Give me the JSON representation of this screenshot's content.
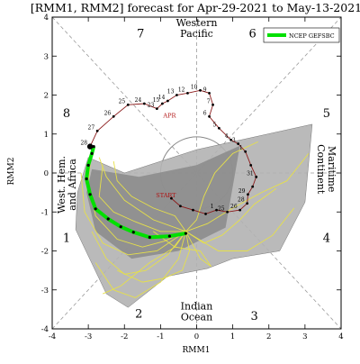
{
  "chart_data": {
    "type": "line",
    "title": "[RMM1, RMM2] forecast for Apr-29-2021 to May-13-2021",
    "xlabel": "RMM1",
    "ylabel": "RMM2",
    "xlim": [
      -4,
      4
    ],
    "ylim": [
      -4,
      4
    ],
    "xticks": [
      "-4",
      "-3",
      "-2",
      "-1",
      "0",
      "1",
      "2",
      "3",
      "4"
    ],
    "yticks": [
      "-4",
      "-3",
      "-2",
      "-1",
      "0",
      "1",
      "2",
      "3",
      "4"
    ],
    "legend": {
      "placement": "top-right",
      "label": "NCEP GEFSBC",
      "color": "#00e000"
    },
    "phase_numbers": [
      {
        "label": "1",
        "x": -3.6,
        "y": -1.65
      },
      {
        "label": "2",
        "x": -1.6,
        "y": -3.6
      },
      {
        "label": "3",
        "x": 1.6,
        "y": -3.65
      },
      {
        "label": "4",
        "x": 3.6,
        "y": -1.65
      },
      {
        "label": "5",
        "x": 3.6,
        "y": 1.55
      },
      {
        "label": "6",
        "x": 1.55,
        "y": 3.6
      },
      {
        "label": "7",
        "x": -1.55,
        "y": 3.6
      },
      {
        "label": "8",
        "x": -3.6,
        "y": 1.55
      }
    ],
    "region_labels": [
      {
        "lines": [
          "Western",
          "Pacific"
        ],
        "x": 0,
        "y": 3.72,
        "rotate": 0
      },
      {
        "lines": [
          "Indian",
          "Ocean"
        ],
        "x": 0,
        "y": -3.55,
        "rotate": 0
      },
      {
        "lines": [
          "West. Hem.",
          "and Africa"
        ],
        "x": -3.6,
        "y": -0.3,
        "rotate": -90
      },
      {
        "lines": [
          "Maritime",
          "Continent"
        ],
        "x": 3.6,
        "y": 0.1,
        "rotate": 90
      }
    ],
    "observed": {
      "color": "#8b1a1a",
      "points": [
        {
          "x": -2.95,
          "y": 0.68,
          "label": "28"
        },
        {
          "x": -2.75,
          "y": 1.08,
          "label": "27"
        },
        {
          "x": -2.3,
          "y": 1.45,
          "label": "26"
        },
        {
          "x": -1.9,
          "y": 1.75,
          "label": "25"
        },
        {
          "x": -1.45,
          "y": 1.78,
          "label": "24"
        },
        {
          "x": -1.1,
          "y": 1.65,
          "label": "23"
        },
        {
          "x": -0.95,
          "y": 1.78,
          "label": "15"
        },
        {
          "x": -0.8,
          "y": 1.85,
          "label": "14"
        },
        {
          "x": -0.55,
          "y": 2.0,
          "label": "13"
        },
        {
          "x": -0.25,
          "y": 2.05,
          "label": "12"
        },
        {
          "x": 0.1,
          "y": 2.12,
          "label": "10"
        },
        {
          "x": 0.35,
          "y": 2.05,
          "label": "9"
        },
        {
          "x": 0.45,
          "y": 1.75,
          "label": "7"
        },
        {
          "x": 0.35,
          "y": 1.45,
          "label": "6"
        },
        {
          "x": 0.62,
          "y": 1.15,
          "label": "5"
        },
        {
          "x": 0.95,
          "y": 0.85,
          "label": "4"
        },
        {
          "x": 1.15,
          "y": 0.75,
          "label": "3"
        },
        {
          "x": 1.35,
          "y": 0.55,
          "label": "1"
        },
        {
          "x": 1.5,
          "y": 0.2,
          "label": ""
        },
        {
          "x": 1.65,
          "y": -0.1,
          "label": "31"
        },
        {
          "x": 1.55,
          "y": -0.35,
          "label": ""
        },
        {
          "x": 1.42,
          "y": -0.55,
          "label": "29"
        },
        {
          "x": 1.4,
          "y": -0.78,
          "label": "28"
        },
        {
          "x": 1.2,
          "y": -0.95,
          "label": "26"
        },
        {
          "x": 0.85,
          "y": -1.0,
          "label": "25"
        },
        {
          "x": 0.55,
          "y": -0.95,
          "label": "1"
        },
        {
          "x": 0.25,
          "y": -1.05,
          "label": ""
        },
        {
          "x": -0.1,
          "y": -0.95,
          "label": ""
        },
        {
          "x": -0.45,
          "y": -0.85,
          "label": ""
        },
        {
          "x": -0.7,
          "y": -0.65,
          "label": ""
        }
      ],
      "annotations": [
        {
          "text": "APR",
          "x": -0.75,
          "y": 1.42
        },
        {
          "text": "START",
          "x": -0.85,
          "y": -0.62
        }
      ]
    },
    "ensemble_mean": {
      "name": "NCEP GEFSBC",
      "color": "#00e000",
      "points": [
        {
          "x": -0.3,
          "y": -1.55
        },
        {
          "x": -0.75,
          "y": -1.62
        },
        {
          "x": -1.3,
          "y": -1.65
        },
        {
          "x": -1.75,
          "y": -1.52
        },
        {
          "x": -2.1,
          "y": -1.38
        },
        {
          "x": -2.45,
          "y": -1.18
        },
        {
          "x": -2.8,
          "y": -0.92
        },
        {
          "x": -2.95,
          "y": -0.55
        },
        {
          "x": -3.05,
          "y": -0.15
        },
        {
          "x": -3.0,
          "y": 0.2
        },
        {
          "x": -2.9,
          "y": 0.5
        },
        {
          "x": -2.85,
          "y": 0.68
        }
      ]
    },
    "spread_outer": [
      {
        "x": -3.0,
        "y": 0.4
      },
      {
        "x": -2.0,
        "y": 0.0
      },
      {
        "x": 0.0,
        "y": 0.6
      },
      {
        "x": 3.2,
        "y": 1.25
      },
      {
        "x": 3.0,
        "y": -0.75
      },
      {
        "x": 2.3,
        "y": -2.0
      },
      {
        "x": 1.0,
        "y": -2.2
      },
      {
        "x": 0.3,
        "y": -2.45
      },
      {
        "x": -0.8,
        "y": -2.65
      },
      {
        "x": -1.9,
        "y": -3.45
      },
      {
        "x": -2.5,
        "y": -3.1
      },
      {
        "x": -3.35,
        "y": -1.45
      },
      {
        "x": -3.3,
        "y": -0.5
      }
    ],
    "spread_inner": [
      {
        "x": -2.9,
        "y": 0.1
      },
      {
        "x": -1.6,
        "y": -0.1
      },
      {
        "x": 0.0,
        "y": 0.2
      },
      {
        "x": 1.2,
        "y": 0.7
      },
      {
        "x": 0.8,
        "y": -1.4
      },
      {
        "x": -0.5,
        "y": -2.0
      },
      {
        "x": -1.8,
        "y": -2.2
      },
      {
        "x": -2.8,
        "y": -1.5
      },
      {
        "x": -3.05,
        "y": -0.5
      }
    ],
    "members": [
      [
        {
          "x": -0.3,
          "y": -1.5
        },
        {
          "x": -0.9,
          "y": -1.75
        },
        {
          "x": -1.5,
          "y": -1.9
        },
        {
          "x": -2.2,
          "y": -1.7
        },
        {
          "x": -2.8,
          "y": -1.1
        },
        {
          "x": -3.0,
          "y": -0.2
        },
        {
          "x": -2.9,
          "y": 0.6
        }
      ],
      [
        {
          "x": -0.3,
          "y": -1.5
        },
        {
          "x": -1.0,
          "y": -1.5
        },
        {
          "x": -1.7,
          "y": -1.25
        },
        {
          "x": -2.3,
          "y": -1.0
        },
        {
          "x": -2.7,
          "y": -0.6
        },
        {
          "x": -2.6,
          "y": 0.2
        }
      ],
      [
        {
          "x": -0.3,
          "y": -1.5
        },
        {
          "x": -0.8,
          "y": -2.1
        },
        {
          "x": -1.4,
          "y": -2.5
        },
        {
          "x": -2.0,
          "y": -2.6
        },
        {
          "x": -2.5,
          "y": -2.2
        },
        {
          "x": -2.9,
          "y": -1.5
        }
      ],
      [
        {
          "x": -0.3,
          "y": -1.5
        },
        {
          "x": -0.5,
          "y": -2.2
        },
        {
          "x": -1.0,
          "y": -2.8
        },
        {
          "x": -1.7,
          "y": -3.2
        },
        {
          "x": -2.3,
          "y": -3.0
        },
        {
          "x": -2.8,
          "y": -2.3
        }
      ],
      [
        {
          "x": -0.3,
          "y": -1.5
        },
        {
          "x": 0.2,
          "y": -1.8
        },
        {
          "x": 0.7,
          "y": -1.6
        },
        {
          "x": 1.2,
          "y": -1.2
        },
        {
          "x": 1.6,
          "y": -0.8
        },
        {
          "x": 2.2,
          "y": -0.4
        }
      ],
      [
        {
          "x": -0.3,
          "y": -1.5
        },
        {
          "x": 0.3,
          "y": -1.3
        },
        {
          "x": 1.0,
          "y": -0.9
        },
        {
          "x": 1.8,
          "y": -0.5
        },
        {
          "x": 2.5,
          "y": -0.2
        },
        {
          "x": 3.1,
          "y": 0.5
        }
      ],
      [
        {
          "x": -0.3,
          "y": -1.5
        },
        {
          "x": -0.6,
          "y": -1.1
        },
        {
          "x": -1.2,
          "y": -0.9
        },
        {
          "x": -1.8,
          "y": -0.6
        },
        {
          "x": -2.2,
          "y": -0.2
        },
        {
          "x": -2.3,
          "y": 0.3
        }
      ],
      [
        {
          "x": -0.3,
          "y": -1.5
        },
        {
          "x": -0.2,
          "y": -2.0
        },
        {
          "x": -0.4,
          "y": -2.5
        },
        {
          "x": -0.9,
          "y": -2.7
        },
        {
          "x": -1.5,
          "y": -2.8
        },
        {
          "x": -2.2,
          "y": -2.5
        }
      ],
      [
        {
          "x": -0.3,
          "y": -1.5
        },
        {
          "x": 0.0,
          "y": -1.2
        },
        {
          "x": 0.2,
          "y": -0.6
        },
        {
          "x": 0.5,
          "y": 0.0
        },
        {
          "x": 1.0,
          "y": 0.5
        },
        {
          "x": 1.7,
          "y": 0.8
        }
      ],
      [
        {
          "x": -0.3,
          "y": -1.5
        },
        {
          "x": -1.1,
          "y": -2.0
        },
        {
          "x": -1.9,
          "y": -2.1
        },
        {
          "x": -2.6,
          "y": -1.8
        },
        {
          "x": -3.1,
          "y": -1.0
        },
        {
          "x": -3.2,
          "y": 0.0
        }
      ],
      [
        {
          "x": -0.3,
          "y": -1.5
        },
        {
          "x": -1.2,
          "y": -1.2
        },
        {
          "x": -2.0,
          "y": -0.7
        },
        {
          "x": -2.5,
          "y": -0.1
        },
        {
          "x": -2.7,
          "y": 0.4
        }
      ],
      [
        {
          "x": -0.3,
          "y": -1.5
        },
        {
          "x": 0.6,
          "y": -2.0
        },
        {
          "x": 1.4,
          "y": -2.0
        },
        {
          "x": 2.1,
          "y": -1.6
        },
        {
          "x": 2.7,
          "y": -0.9
        }
      ],
      [
        {
          "x": -0.3,
          "y": -1.5
        },
        {
          "x": -0.6,
          "y": -1.9
        },
        {
          "x": -1.3,
          "y": -2.3
        },
        {
          "x": -2.1,
          "y": -2.9
        },
        {
          "x": -2.6,
          "y": -3.1
        }
      ],
      [
        {
          "x": -0.3,
          "y": -1.5
        },
        {
          "x": 0.1,
          "y": -2.2
        },
        {
          "x": 0.4,
          "y": -2.4
        },
        {
          "x": 0.1,
          "y": -2.0
        },
        {
          "x": -0.6,
          "y": -1.9
        },
        {
          "x": -1.2,
          "y": -1.5
        }
      ]
    ],
    "colors": {
      "observed": "#8b1a1a",
      "ensemble_mean": "#00e000",
      "members": "#e6e04a",
      "spread_outer": "#b3b3b3",
      "spread_inner": "#8a8a8a",
      "guides": "#9a9a9a"
    }
  }
}
